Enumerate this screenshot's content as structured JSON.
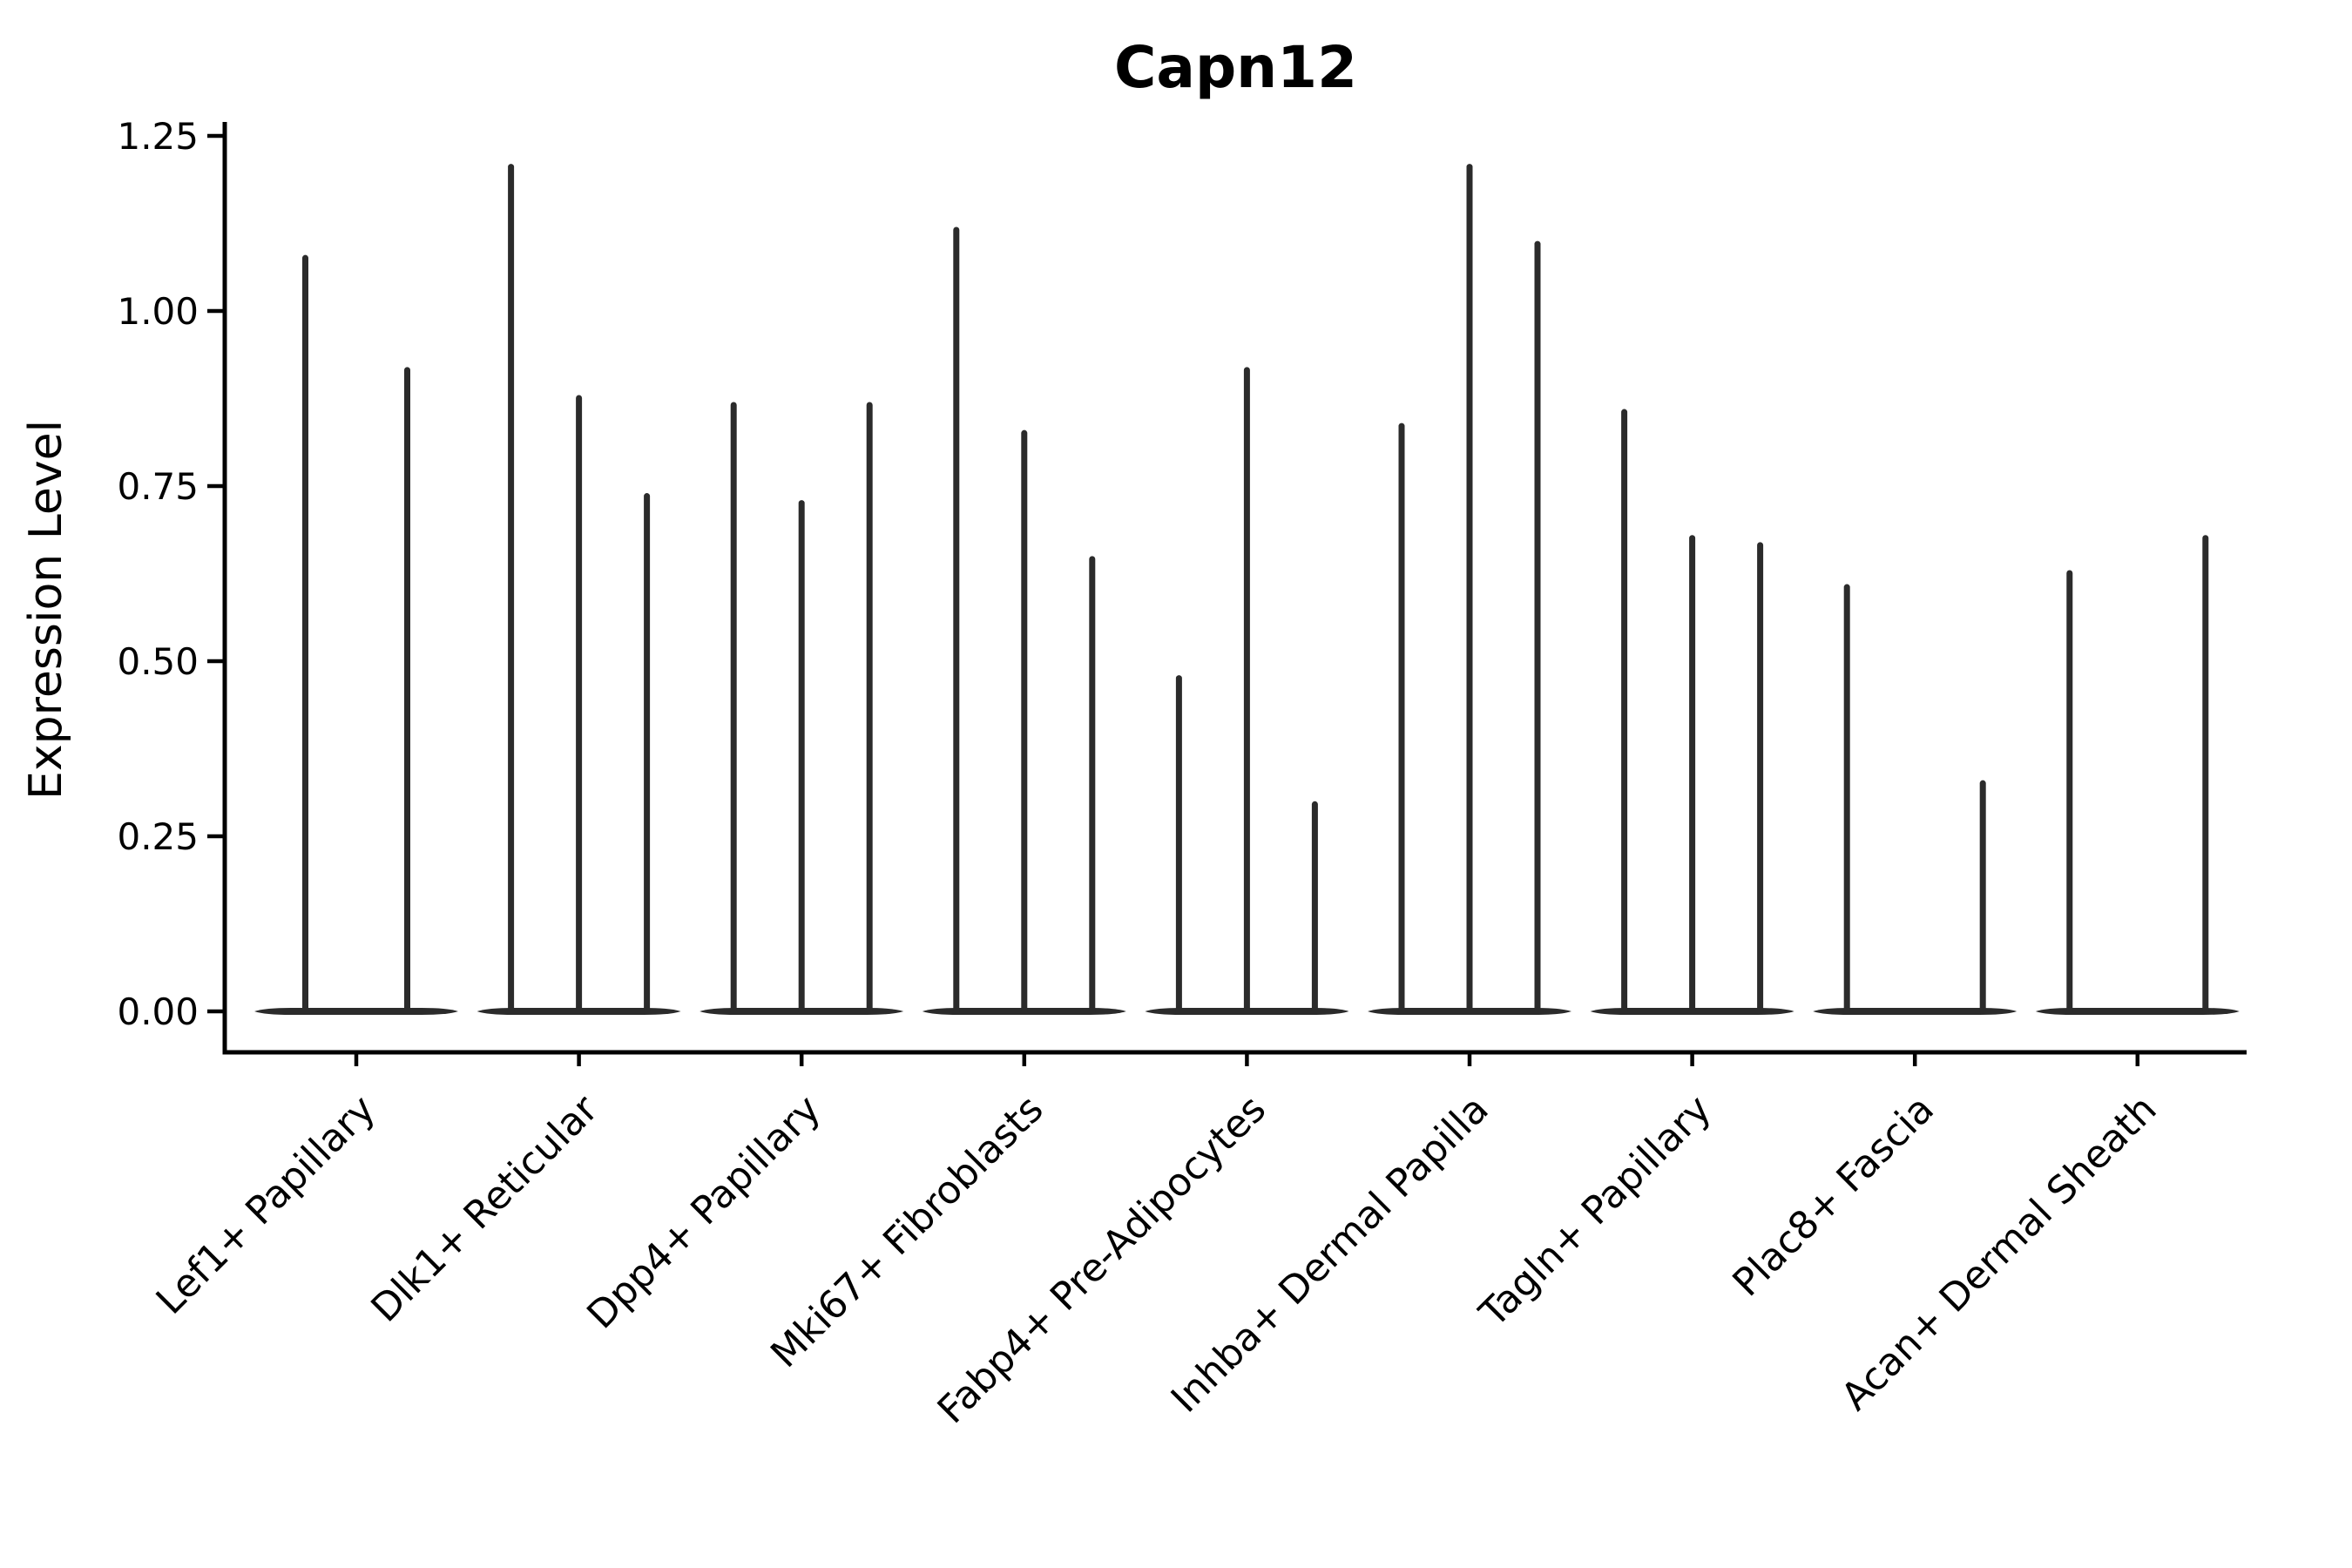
{
  "chart_data": {
    "type": "violin",
    "title": "Capn12",
    "xlabel": "",
    "ylabel": "Expression Level",
    "yticks": [
      "0.00",
      "0.25",
      "0.50",
      "0.75",
      "1.00",
      "1.25"
    ],
    "ytick_values": [
      0.0,
      0.25,
      0.5,
      0.75,
      1.0,
      1.25
    ],
    "ylim": [
      -0.06,
      1.27
    ],
    "grid": false,
    "legend": "none",
    "ink_color": "#000000",
    "violin_color": "#2b2b2b",
    "background_color": "#ffffff",
    "categories": [
      "Lef1+ Papillary",
      "Dlk1+ Reticular",
      "Dpp4+ Papillary",
      "Mki67+ Fibroblasts",
      "Fabp4+ Pre-Adipocytes",
      "Inhba+ Dermal Papilla",
      "Tagln+ Papillary",
      "Plac8+ Fascia",
      "Acan+ Dermal Sheath"
    ],
    "groups": [
      {
        "category": "Lef1+ Papillary",
        "violin_max_values": [
          1.08,
          0.92
        ]
      },
      {
        "category": "Dlk1+ Reticular",
        "violin_max_values": [
          1.21,
          0.88,
          0.74
        ]
      },
      {
        "category": "Dpp4+ Papillary",
        "violin_max_values": [
          0.87,
          0.73,
          0.87
        ]
      },
      {
        "category": "Mki67+ Fibroblasts",
        "violin_max_values": [
          1.12,
          0.83,
          0.65
        ]
      },
      {
        "category": "Fabp4+ Pre-Adipocytes",
        "violin_max_values": [
          0.48,
          0.92,
          0.3
        ]
      },
      {
        "category": "Inhba+ Dermal Papilla",
        "violin_max_values": [
          0.84,
          1.21,
          1.1
        ]
      },
      {
        "category": "Tagln+ Papillary",
        "violin_max_values": [
          0.86,
          0.68,
          0.67
        ]
      },
      {
        "category": "Plac8+ Fascia",
        "violin_max_values": [
          0.61,
          0,
          0.33
        ]
      },
      {
        "category": "Acan+ Dermal Sheath",
        "violin_max_values": [
          0.63,
          0,
          0.68
        ]
      }
    ]
  }
}
